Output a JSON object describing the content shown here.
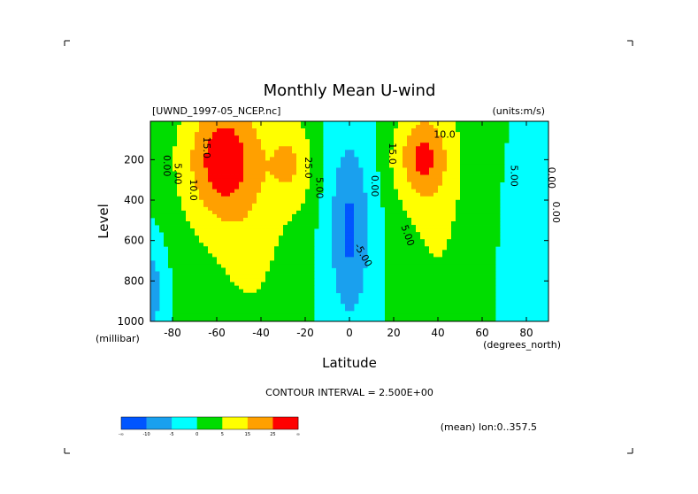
{
  "chart_data": {
    "type": "heatmap",
    "title": "Monthly Mean U-wind",
    "source_label": "[UWND_1997-05_NCEP.nc]",
    "units_label": "(units:m/s)",
    "xlabel": "Latitude",
    "x_units": "(degrees_north)",
    "ylabel": "Level",
    "y_units": "(millibar)",
    "xlim": [
      -90,
      90
    ],
    "ylim": [
      1000,
      10
    ],
    "x_ticks": [
      -80,
      -60,
      -40,
      -20,
      0,
      20,
      40,
      60,
      80
    ],
    "y_ticks": [
      200,
      400,
      600,
      800,
      1000
    ],
    "contour_interval": "CONTOUR INTERVAL = 2.500E+00",
    "mean_note": "(mean) lon:0..357.5",
    "colorbar": {
      "bins": [
        {
          "color": "#0055ff"
        },
        {
          "color": "#1aa0ee"
        },
        {
          "color": "#00ffff"
        },
        {
          "color": "#00dd00"
        },
        {
          "color": "#ffff00"
        },
        {
          "color": "#ffa000"
        },
        {
          "color": "#ff0000"
        }
      ],
      "labels": [
        "-∞",
        "-10",
        "-5",
        "0",
        "5",
        "15",
        "25",
        "∞"
      ]
    },
    "contour_labels": [
      {
        "text": "0.00",
        "lat": -84,
        "lev": 230,
        "rot": 90
      },
      {
        "text": "5.00",
        "lat": -79,
        "lev": 270,
        "rot": 90
      },
      {
        "text": "10.0",
        "lat": -72,
        "lev": 350,
        "rot": 90
      },
      {
        "text": "15.0",
        "lat": -66,
        "lev": 140,
        "rot": 90
      },
      {
        "text": "25.0",
        "lat": -20,
        "lev": 240,
        "rot": 90
      },
      {
        "text": "5.00",
        "lat": -15,
        "lev": 340,
        "rot": 90
      },
      {
        "text": "0.00",
        "lat": 10,
        "lev": 330,
        "rot": 90
      },
      {
        "text": "-5.00",
        "lat": 5,
        "lev": 680,
        "rot": 60
      },
      {
        "text": "5.00",
        "lat": 25,
        "lev": 580,
        "rot": 70
      },
      {
        "text": "15.0",
        "lat": 18,
        "lev": 170,
        "rot": 90
      },
      {
        "text": "10.0",
        "lat": 43,
        "lev": 90,
        "rot": 0
      },
      {
        "text": "5.00",
        "lat": 73,
        "lev": 280,
        "rot": 90
      },
      {
        "text": "0.00",
        "lat": 90,
        "lev": 290,
        "rot": 90
      },
      {
        "text": "0.00",
        "lat": 92,
        "lev": 460,
        "rot": 90
      }
    ],
    "features": [
      {
        "name": "southern-jet",
        "lat": -58,
        "lev": 200,
        "w_lat": 16,
        "w_lev": 300,
        "amp": 28
      },
      {
        "name": "southern-midlat-jet",
        "lat": -27,
        "lev": 220,
        "w_lat": 9,
        "w_lev": 200,
        "amp": 14
      },
      {
        "name": "southern-broad",
        "lat": -45,
        "lev": 400,
        "w_lat": 18,
        "w_lev": 650,
        "amp": 8
      },
      {
        "name": "northern-jet",
        "lat": 33,
        "lev": 190,
        "w_lat": 11,
        "w_lev": 210,
        "amp": 24
      },
      {
        "name": "northern-broad",
        "lat": 40,
        "lev": 400,
        "w_lat": 14,
        "w_lev": 650,
        "amp": 6
      },
      {
        "name": "tropical-easterlies",
        "lat": 0,
        "lev": 550,
        "w_lat": 9,
        "w_lev": 450,
        "amp": -11
      },
      {
        "name": "polar-easterlies-south",
        "lat": -90,
        "lev": 850,
        "w_lat": 5,
        "w_lev": 200,
        "amp": -9
      },
      {
        "name": "polar-easterlies-north",
        "lat": 90,
        "lev": 700,
        "w_lat": 14,
        "w_lev": 400,
        "amp": -2
      }
    ]
  }
}
